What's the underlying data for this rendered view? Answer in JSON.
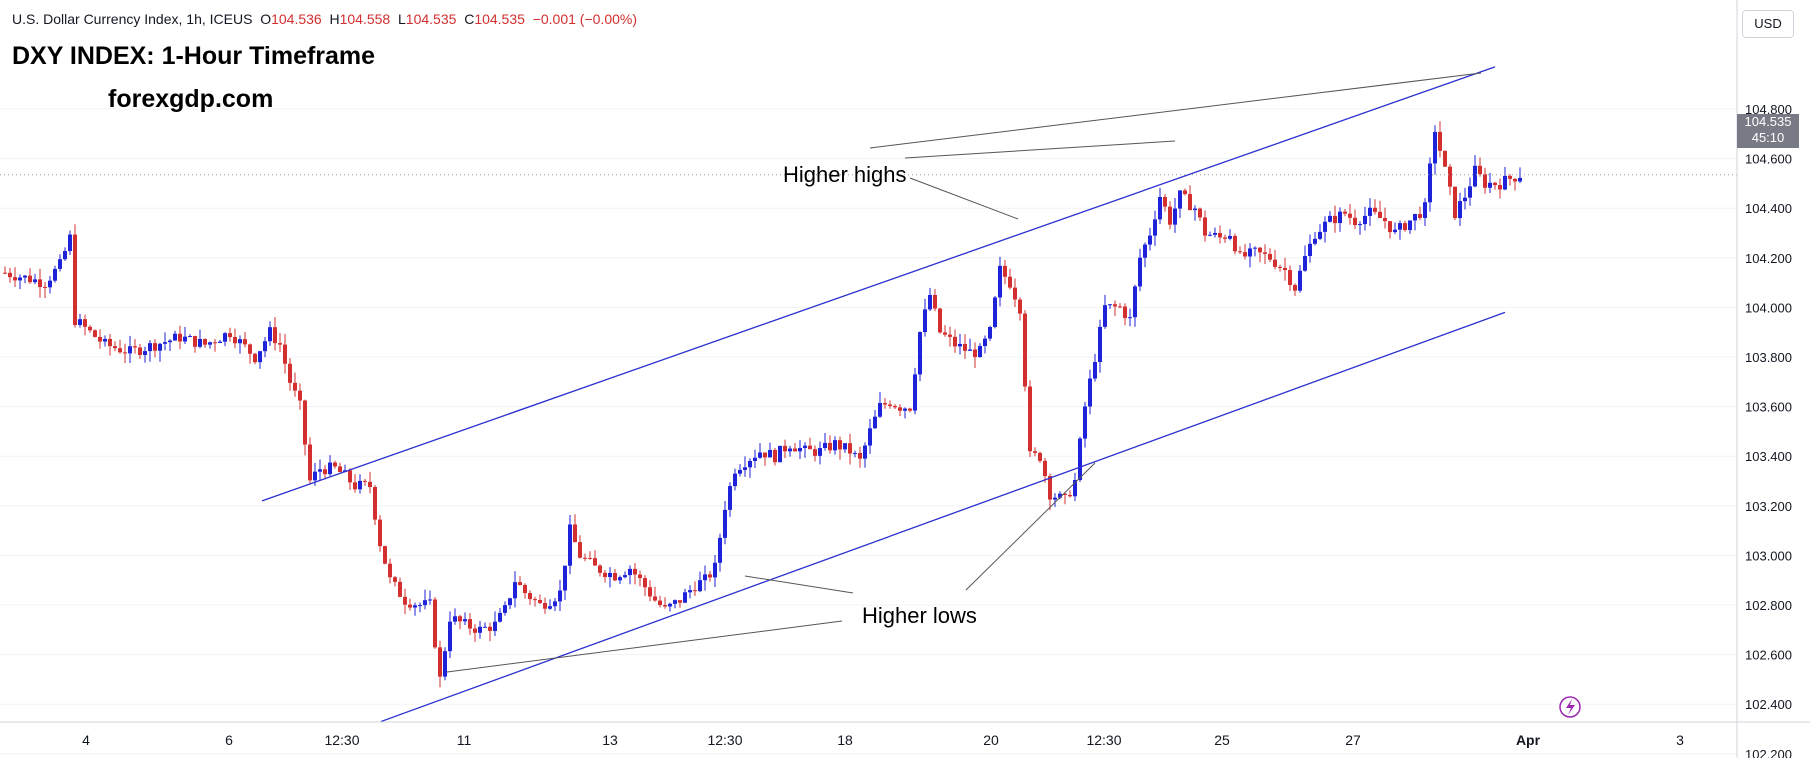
{
  "header": {
    "symbol": "U.S. Dollar Currency Index, 1h, ICEUS",
    "o_label": "O",
    "o_value": "104.536",
    "h_label": "H",
    "h_value": "104.558",
    "l_label": "L",
    "l_value": "104.535",
    "c_label": "C",
    "c_value": "104.535",
    "change": "−0.001 (−0.00%)"
  },
  "overlay": {
    "title": "DXY INDEX: 1-Hour Timeframe",
    "site": "forexgdp.com",
    "higher_highs": "Higher highs",
    "higher_lows": "Higher lows"
  },
  "price_scale": {
    "currency": "USD",
    "last_price": "104.535",
    "countdown": "45:10",
    "ticks": [
      "104.800",
      "104.600",
      "104.400",
      "104.200",
      "104.000",
      "103.800",
      "103.600",
      "103.400",
      "103.200",
      "103.000",
      "102.800",
      "102.600",
      "102.400",
      "102.200"
    ]
  },
  "colors": {
    "up": "#1e22d8",
    "down": "#d32f2f",
    "channel": "#2b2fcf",
    "annotation_line": "#555555",
    "grid": "#f0f3fa"
  },
  "chart_data": {
    "type": "candlestick",
    "title": "DXY INDEX: 1-Hour Timeframe",
    "last_price": 104.535,
    "ylim": [
      102.1,
      104.95
    ],
    "x_tick_labels": [
      "4",
      "6",
      "12:30",
      "11",
      "13",
      "12:30",
      "18",
      "20",
      "12:30",
      "25",
      "27",
      "Apr",
      "3"
    ],
    "price_path": [
      [
        0,
        104.14
      ],
      [
        4,
        104.12
      ],
      [
        8,
        104.1
      ],
      [
        11,
        104.17
      ],
      [
        13,
        104.28
      ],
      [
        14,
        103.95
      ],
      [
        17,
        103.9
      ],
      [
        20,
        103.85
      ],
      [
        25,
        103.82
      ],
      [
        30,
        103.85
      ],
      [
        35,
        103.88
      ],
      [
        40,
        103.85
      ],
      [
        45,
        103.9
      ],
      [
        50,
        103.8
      ],
      [
        53,
        103.9
      ],
      [
        55,
        103.85
      ],
      [
        57,
        103.7
      ],
      [
        59,
        103.6
      ],
      [
        61,
        103.3
      ],
      [
        63,
        103.35
      ],
      [
        66,
        103.35
      ],
      [
        68,
        103.32
      ],
      [
        70,
        103.28
      ],
      [
        73,
        103.28
      ],
      [
        75,
        103.05
      ],
      [
        77,
        102.9
      ],
      [
        80,
        102.82
      ],
      [
        83,
        102.8
      ],
      [
        85,
        102.8
      ],
      [
        87,
        102.5
      ],
      [
        89,
        102.75
      ],
      [
        92,
        102.72
      ],
      [
        95,
        102.7
      ],
      [
        98,
        102.72
      ],
      [
        100,
        102.78
      ],
      [
        102,
        102.9
      ],
      [
        104,
        102.85
      ],
      [
        107,
        102.8
      ],
      [
        109,
        102.82
      ],
      [
        111,
        102.85
      ],
      [
        113,
        103.1
      ],
      [
        115,
        103.0
      ],
      [
        118,
        102.95
      ],
      [
        122,
        102.92
      ],
      [
        125,
        102.95
      ],
      [
        127,
        102.9
      ],
      [
        130,
        102.82
      ],
      [
        132,
        102.78
      ],
      [
        135,
        102.82
      ],
      [
        138,
        102.88
      ],
      [
        140,
        102.9
      ],
      [
        142,
        102.95
      ],
      [
        144,
        103.2
      ],
      [
        146,
        103.35
      ],
      [
        148,
        103.38
      ],
      [
        151,
        103.42
      ],
      [
        154,
        103.4
      ],
      [
        157,
        103.45
      ],
      [
        160,
        103.42
      ],
      [
        163,
        103.42
      ],
      [
        166,
        103.45
      ],
      [
        169,
        103.42
      ],
      [
        171,
        103.38
      ],
      [
        173,
        103.5
      ],
      [
        175,
        103.6
      ],
      [
        177,
        103.62
      ],
      [
        179,
        103.6
      ],
      [
        181,
        103.6
      ],
      [
        183,
        103.9
      ],
      [
        185,
        104.05
      ],
      [
        187,
        103.9
      ],
      [
        190,
        103.85
      ],
      [
        193,
        103.82
      ],
      [
        195,
        103.82
      ],
      [
        197,
        103.9
      ],
      [
        199,
        104.15
      ],
      [
        201,
        104.1
      ],
      [
        203,
        104.0
      ],
      [
        205,
        103.4
      ],
      [
        207,
        103.4
      ],
      [
        209,
        103.25
      ],
      [
        212,
        103.22
      ],
      [
        214,
        103.3
      ],
      [
        216,
        103.6
      ],
      [
        218,
        103.8
      ],
      [
        220,
        104.0
      ],
      [
        223,
        104.0
      ],
      [
        225,
        103.95
      ],
      [
        227,
        104.2
      ],
      [
        229,
        104.3
      ],
      [
        231,
        104.45
      ],
      [
        233,
        104.35
      ],
      [
        235,
        104.45
      ],
      [
        238,
        104.4
      ],
      [
        240,
        104.3
      ],
      [
        243,
        104.28
      ],
      [
        245,
        104.3
      ],
      [
        247,
        104.2
      ],
      [
        250,
        104.22
      ],
      [
        253,
        104.2
      ],
      [
        256,
        104.15
      ],
      [
        258,
        104.08
      ],
      [
        260,
        104.2
      ],
      [
        262,
        104.3
      ],
      [
        265,
        104.35
      ],
      [
        268,
        104.38
      ],
      [
        270,
        104.35
      ],
      [
        273,
        104.38
      ],
      [
        276,
        104.35
      ],
      [
        278,
        104.3
      ],
      [
        281,
        104.35
      ],
      [
        284,
        104.4
      ],
      [
        286,
        104.72
      ],
      [
        288,
        104.55
      ],
      [
        290,
        104.38
      ],
      [
        292,
        104.45
      ],
      [
        294,
        104.55
      ],
      [
        296,
        104.5
      ],
      [
        299,
        104.5
      ],
      [
        301,
        104.52
      ],
      [
        303,
        104.535
      ]
    ],
    "channel": {
      "upper": [
        [
          262,
          103.22
        ],
        [
          1495,
          104.97
        ]
      ],
      "lower": [
        [
          381,
          102.33
        ],
        [
          1505,
          103.98
        ]
      ]
    },
    "annotations": [
      {
        "text": "Higher highs",
        "anchor_price": 104.16
      },
      {
        "text": "Higher lows",
        "anchor_price": 102.33
      }
    ]
  }
}
